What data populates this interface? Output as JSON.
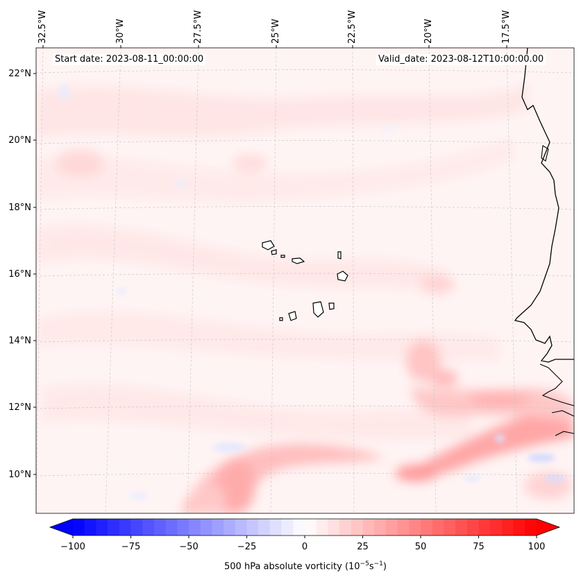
{
  "map": {
    "header": {
      "start_date": "Start date: 2023-08-11_00:00:00",
      "valid_date": "Valid_date: 2023-08-12T10:00:00.00"
    },
    "lon_labels": [
      "32.5°W",
      "30°W",
      "27.5°W",
      "25°W",
      "22.5°W",
      "20°W",
      "17.5°W"
    ],
    "lat_labels": [
      "22°N",
      "20°N",
      "18°N",
      "16°N",
      "14°N",
      "12°N",
      "10°N"
    ],
    "features": [
      "Cape Verde islands",
      "West African coastline"
    ]
  },
  "colorbar": {
    "ticks": [
      "−100",
      "−75",
      "−50",
      "−25",
      "0",
      "25",
      "50",
      "75",
      "100"
    ],
    "label": "500 hPa absolute vorticity (10",
    "label_exp1": "−5",
    "label_mid": "s",
    "label_exp2": "−1",
    "label_end": ")",
    "min": -100,
    "max": 100,
    "levels": 41,
    "colors": {
      "low": "#0000ff",
      "mid": "#ffffff",
      "high": "#ff0000"
    }
  }
}
